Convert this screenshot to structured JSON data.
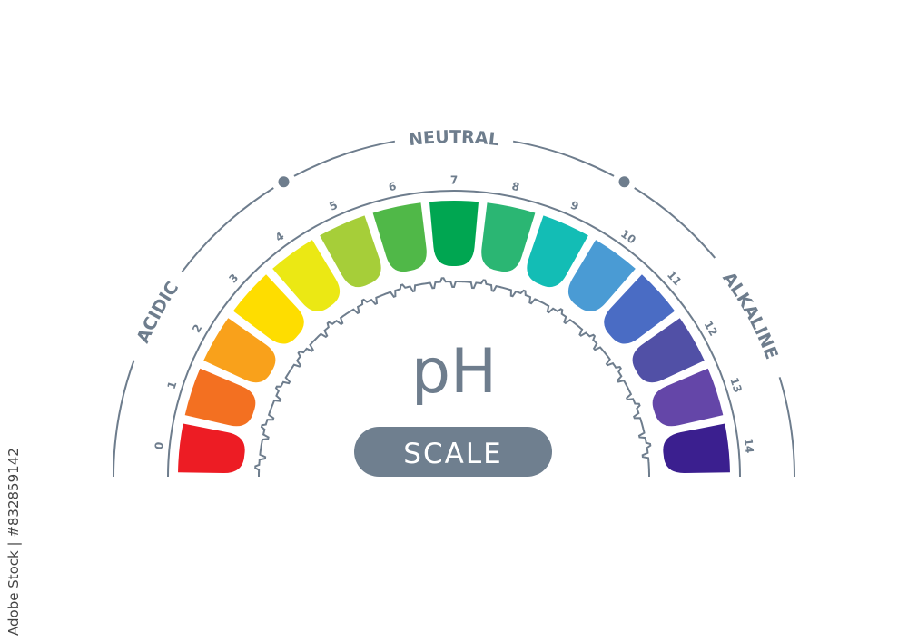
{
  "title": "pH",
  "subtitle": "SCALE",
  "zones": {
    "acidic": "ACIDIC",
    "neutral": "NEUTRAL",
    "alkaline": "ALKALINE"
  },
  "scale": [
    {
      "value": "0",
      "color": "#ed1c24"
    },
    {
      "value": "1",
      "color": "#f37021"
    },
    {
      "value": "2",
      "color": "#f9a11b"
    },
    {
      "value": "3",
      "color": "#fedd00"
    },
    {
      "value": "4",
      "color": "#ebe814"
    },
    {
      "value": "5",
      "color": "#a6ce39"
    },
    {
      "value": "6",
      "color": "#50b848"
    },
    {
      "value": "7",
      "color": "#00a651"
    },
    {
      "value": "8",
      "color": "#2bb673"
    },
    {
      "value": "9",
      "color": "#13bdb5"
    },
    {
      "value": "10",
      "color": "#4a9bd4"
    },
    {
      "value": "11",
      "color": "#4a6cc4"
    },
    {
      "value": "12",
      "color": "#5150a6"
    },
    {
      "value": "13",
      "color": "#6446a8"
    },
    {
      "value": "14",
      "color": "#3b1f8f"
    }
  ],
  "colors": {
    "line": "#6e7d8d",
    "pill": "#6f7f8f"
  },
  "watermark": "Adobe Stock | #832859142"
}
